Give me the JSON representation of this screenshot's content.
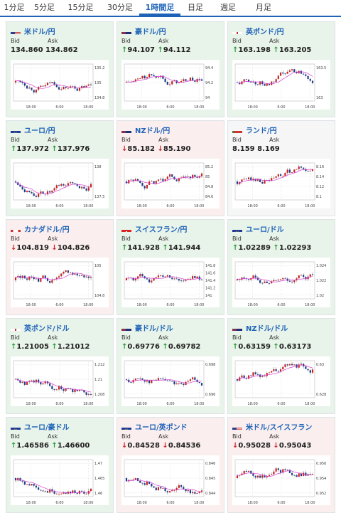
{
  "tabs": [
    {
      "label": "1分足",
      "active": false
    },
    {
      "label": "5分足",
      "active": false
    },
    {
      "label": "15分足",
      "active": false
    },
    {
      "label": "30分足",
      "active": false
    },
    {
      "label": "1時間足",
      "active": true
    },
    {
      "label": "日足",
      "active": false
    },
    {
      "label": "週足",
      "active": false
    },
    {
      "label": "月足",
      "active": false
    }
  ],
  "labels": {
    "bid": "Bid",
    "ask": "Ask"
  },
  "colors": {
    "accent": "#1e63b8",
    "up": "#2a9a3a",
    "down": "#cc2222",
    "candle_up": "#cc2222",
    "candle_down": "#1e3c8c",
    "ma": "#d43fd4"
  },
  "cards": [
    {
      "pair": "米ドル/円",
      "flag": "us",
      "trend": "up",
      "bid": "134.860",
      "ask": "134.862",
      "arrow": "",
      "chart": {
        "yticks": [
          "135.2",
          "135",
          "134.8"
        ],
        "xticks": [
          "18:00",
          "6:00",
          "18:00"
        ]
      }
    },
    {
      "pair": "豪ドル/円",
      "flag": "au",
      "trend": "up",
      "bid": "94.107",
      "ask": "94.112",
      "arrow": "up",
      "chart": {
        "yticks": [
          "94.4",
          "94.2",
          "94"
        ],
        "xticks": [
          "18:00",
          "6:00",
          "18:00"
        ]
      }
    },
    {
      "pair": "英ポンド/円",
      "flag": "uk",
      "trend": "up",
      "bid": "163.198",
      "ask": "163.205",
      "arrow": "up",
      "chart": {
        "yticks": [
          "163.5",
          "163"
        ],
        "xticks": [
          "18:00",
          "6:00",
          "18:00"
        ]
      }
    },
    {
      "pair": "ユーロ/円",
      "flag": "eu",
      "trend": "up",
      "bid": "137.972",
      "ask": "137.976",
      "arrow": "up",
      "chart": {
        "yticks": [
          "138",
          "137.5"
        ],
        "xticks": [
          "18:00",
          "6:00",
          "18:00"
        ]
      }
    },
    {
      "pair": "NZドル/円",
      "flag": "nz",
      "trend": "down",
      "bid": "85.182",
      "ask": "85.190",
      "arrow": "down",
      "chart": {
        "yticks": [
          "85.2",
          "85",
          "84.8",
          "84.6"
        ],
        "xticks": [
          "18:00",
          "6:00",
          "18:00"
        ]
      }
    },
    {
      "pair": "ランド/円",
      "flag": "za",
      "trend": "flat",
      "bid": "8.159",
      "ask": "8.169",
      "arrow": "",
      "chart": {
        "yticks": [
          "8.16",
          "8.14",
          "8.12",
          "8.1"
        ],
        "xticks": [
          "18:00",
          "6:00",
          "18:00"
        ]
      }
    },
    {
      "pair": "カナダドル/円",
      "flag": "ca",
      "trend": "down",
      "bid": "104.819",
      "ask": "104.826",
      "arrow": "down",
      "chart": {
        "yticks": [
          "105",
          "104.8"
        ],
        "xticks": [
          "18:00",
          "6:00",
          "18:00"
        ]
      }
    },
    {
      "pair": "スイスフラン/円",
      "flag": "ch",
      "trend": "up",
      "bid": "141.928",
      "ask": "141.944",
      "arrow": "up",
      "chart": {
        "yticks": [
          "141.8",
          "141.6",
          "141.4",
          "141.2",
          "141"
        ],
        "xticks": [
          "18:00",
          "6:00",
          "18:00"
        ]
      }
    },
    {
      "pair": "ユーロ/ドル",
      "flag": "eu",
      "trend": "up",
      "bid": "1.02289",
      "ask": "1.02293",
      "arrow": "up",
      "chart": {
        "yticks": [
          "1.024",
          "1.022",
          "1.02"
        ],
        "xticks": [
          "18:00",
          "6:00",
          "18:00"
        ]
      }
    },
    {
      "pair": "英ポンド/ドル",
      "flag": "uk",
      "trend": "up",
      "bid": "1.21005",
      "ask": "1.21012",
      "arrow": "up",
      "chart": {
        "yticks": [
          "1.212",
          "1.21",
          "1.208"
        ],
        "xticks": [
          "18:00",
          "6:00",
          "18:00"
        ]
      }
    },
    {
      "pair": "豪ドル/ドル",
      "flag": "au",
      "trend": "up",
      "bid": "0.69776",
      "ask": "0.69782",
      "arrow": "up",
      "chart": {
        "yticks": [
          "0.698",
          "0.696"
        ],
        "xticks": [
          "18:00",
          "6:00",
          "18:00"
        ]
      }
    },
    {
      "pair": "NZドル/ドル",
      "flag": "nz",
      "trend": "up",
      "bid": "0.63159",
      "ask": "0.63173",
      "arrow": "up",
      "chart": {
        "yticks": [
          "0.63",
          "0.628"
        ],
        "xticks": [
          "18:00",
          "6:00",
          "18:00"
        ]
      }
    },
    {
      "pair": "ユーロ/豪ドル",
      "flag": "eu",
      "trend": "up",
      "bid": "1.46586",
      "ask": "1.46600",
      "arrow": "up",
      "chart": {
        "yticks": [
          "1.47",
          "1.465",
          "1.46"
        ],
        "xticks": [
          "18:00",
          "6:00",
          "18:00"
        ]
      }
    },
    {
      "pair": "ユーロ/英ポンド",
      "flag": "eu",
      "trend": "down",
      "bid": "0.84528",
      "ask": "0.84536",
      "arrow": "down",
      "chart": {
        "yticks": [
          "0.846",
          "0.845",
          "0.844"
        ],
        "xticks": [
          "18:00",
          "6:00",
          "18:00"
        ]
      }
    },
    {
      "pair": "米ドル/スイスフラン",
      "flag": "us",
      "trend": "down",
      "bid": "0.95028",
      "ask": "0.95043",
      "arrow": "down",
      "chart": {
        "yticks": [
          "0.956",
          "0.954",
          "0.952"
        ],
        "xticks": [
          "18:00",
          "6:00",
          "18:00"
        ]
      }
    }
  ]
}
